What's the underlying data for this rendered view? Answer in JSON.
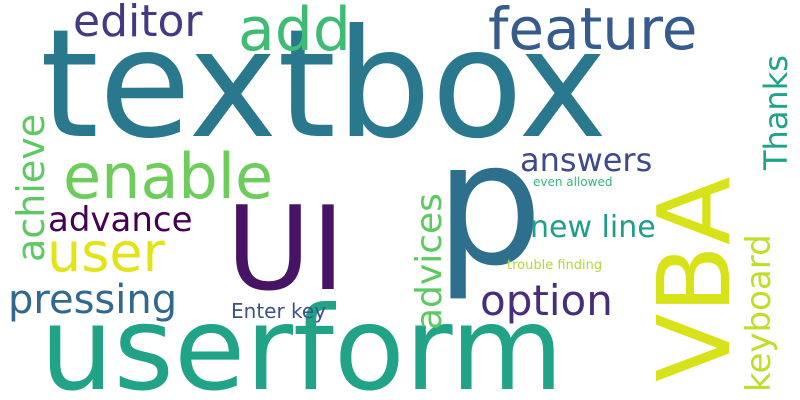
{
  "words": [
    {
      "text": "textbox",
      "color": "#2a788e"
    },
    {
      "text": "userform",
      "color": "#20a386"
    },
    {
      "text": "UI",
      "color": "#471365"
    },
    {
      "text": "p",
      "color": "#2e6f8e"
    },
    {
      "text": "VBA",
      "color": "#d8e219"
    },
    {
      "text": "feature",
      "color": "#365c8d"
    },
    {
      "text": "enable",
      "color": "#6ccd5a"
    },
    {
      "text": "add",
      "color": "#3fbc73"
    },
    {
      "text": "editor",
      "color": "#443983"
    },
    {
      "text": "user",
      "color": "#e2e418"
    },
    {
      "text": "Thanks",
      "color": "#20a386"
    },
    {
      "text": "keyboard",
      "color": "#bddf26"
    },
    {
      "text": "achieve",
      "color": "#5ec962"
    },
    {
      "text": "advance",
      "color": "#440154"
    },
    {
      "text": "pressing",
      "color": "#31688e"
    },
    {
      "text": "option",
      "color": "#472d7b"
    },
    {
      "text": "answers",
      "color": "#3e4a89"
    },
    {
      "text": "advices",
      "color": "#5ec962"
    },
    {
      "text": "new line",
      "color": "#1f9e89"
    },
    {
      "text": "Enter key",
      "color": "#3b528b"
    },
    {
      "text": "even allowed",
      "color": "#35b779"
    },
    {
      "text": "trouble finding",
      "color": "#addc30"
    }
  ]
}
